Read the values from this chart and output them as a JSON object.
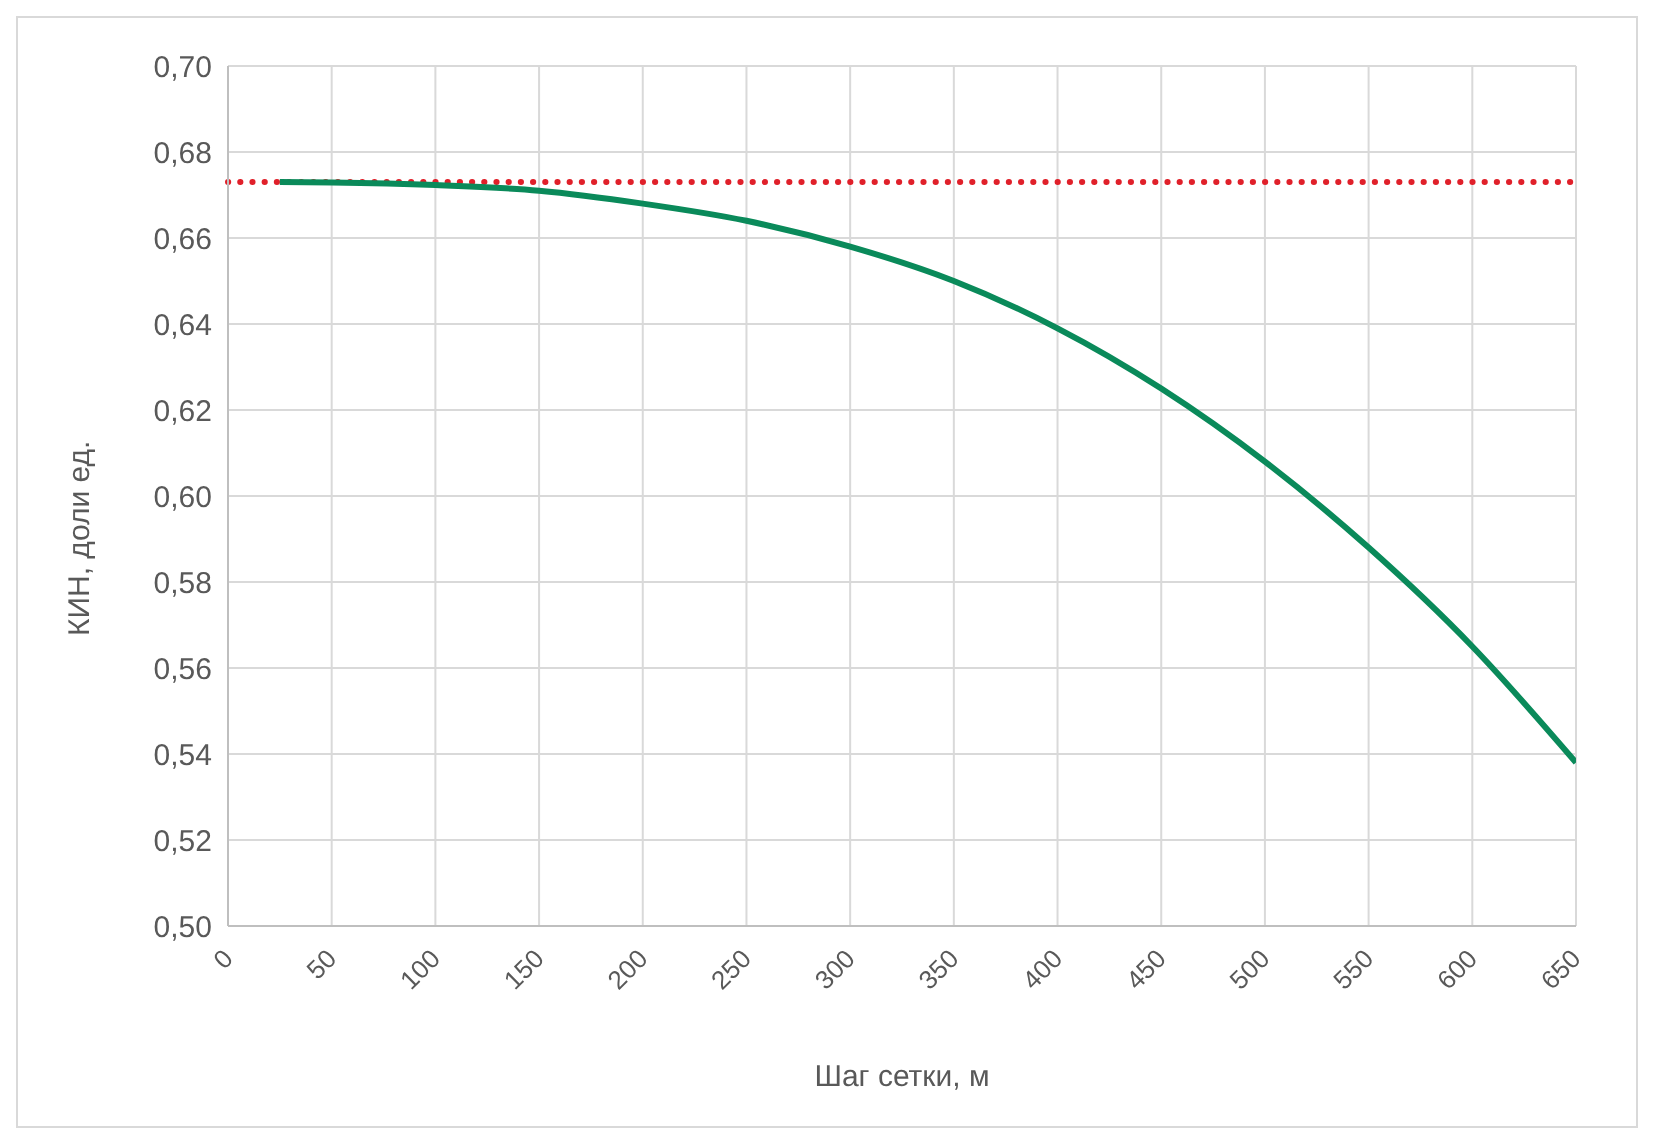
{
  "chart_data": {
    "type": "line",
    "xlabel": "Шаг сетки, м",
    "ylabel": "КИН, доли ед.",
    "x": [
      25,
      50,
      100,
      150,
      200,
      250,
      300,
      350,
      400,
      450,
      500,
      550,
      600,
      650
    ],
    "series": [
      {
        "color": "#0a8a5a",
        "values": [
          0.673,
          0.6729,
          0.6723,
          0.671,
          0.668,
          0.664,
          0.658,
          0.65,
          0.639,
          0.625,
          0.608,
          0.588,
          0.565,
          0.538
        ]
      }
    ],
    "xlim": [
      0,
      650
    ],
    "xticks": [
      0,
      50,
      100,
      150,
      200,
      250,
      300,
      350,
      400,
      450,
      500,
      550,
      600,
      650
    ],
    "ylim": [
      0.5,
      0.7
    ],
    "yticks": [
      {
        "value": 0.5,
        "label": "0,50"
      },
      {
        "value": 0.52,
        "label": "0,52"
      },
      {
        "value": 0.54,
        "label": "0,54"
      },
      {
        "value": 0.56,
        "label": "0,56"
      },
      {
        "value": 0.58,
        "label": "0,58"
      },
      {
        "value": 0.6,
        "label": "0,60"
      },
      {
        "value": 0.62,
        "label": "0,62"
      },
      {
        "value": 0.64,
        "label": "0,64"
      },
      {
        "value": 0.66,
        "label": "0,66"
      },
      {
        "value": 0.68,
        "label": "0,68"
      },
      {
        "value": 0.7,
        "label": "0,70"
      }
    ],
    "ref_lines": [
      {
        "axis": "y",
        "value": 0.673,
        "color": "#e0202a",
        "line_style": "dotted"
      }
    ],
    "grid": true,
    "marker": "none",
    "line_style": "solid"
  }
}
